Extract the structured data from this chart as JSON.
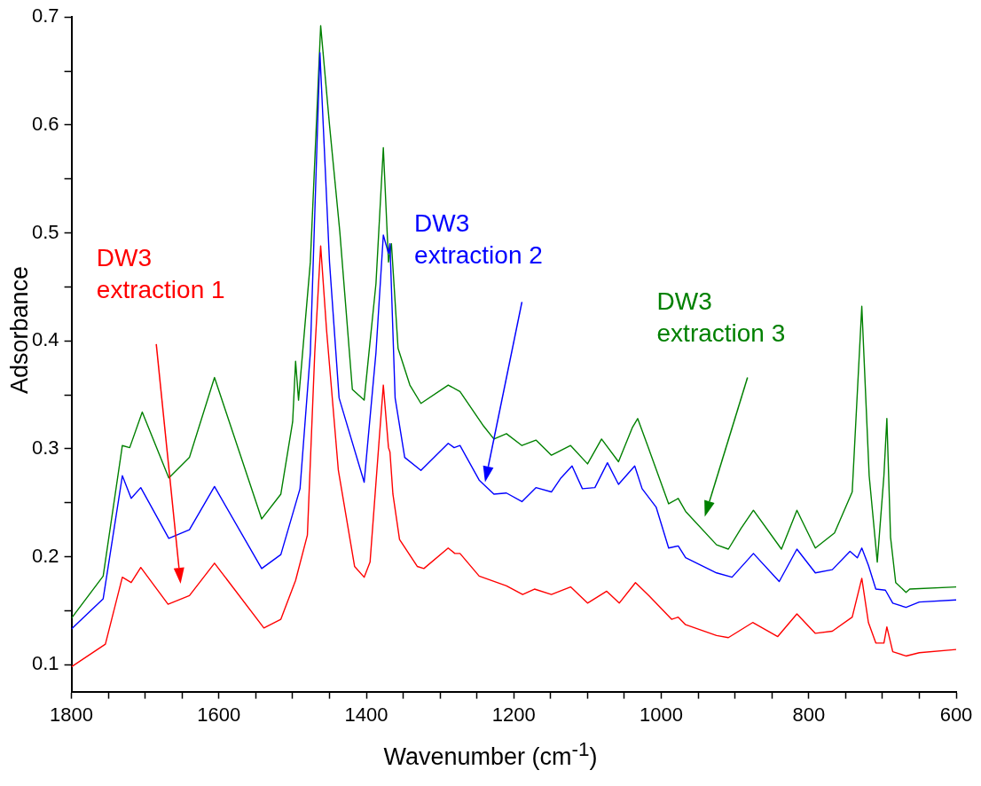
{
  "chart_data": {
    "type": "line",
    "xlabel": "Wavenumber (cm$^{-1}$)",
    "ylabel": "Adsorbance",
    "xlim": [
      1800,
      600
    ],
    "ylim": [
      0.075,
      0.7
    ],
    "xticks": [
      1800,
      {
        "value": 1750,
        "label": null
      },
      1600,
      {
        "value": 1550,
        "label": null
      },
      1400,
      {
        "value": 1350,
        "label": null
      },
      1200,
      {
        "value": 1150,
        "label": null
      },
      1000,
      {
        "value": 950,
        "label": null
      },
      800,
      {
        "value": 750,
        "label": null
      },
      600,
      {
        "value": 1700,
        "label": null
      },
      {
        "value": 1650,
        "label": null
      },
      {
        "value": 1500,
        "label": null
      },
      {
        "value": 1450,
        "label": null
      },
      {
        "value": 1300,
        "label": null
      },
      {
        "value": 1250,
        "label": null
      },
      {
        "value": 1100,
        "label": null
      },
      {
        "value": 1050,
        "label": null
      },
      {
        "value": 900,
        "label": null
      },
      {
        "value": 850,
        "label": null
      },
      {
        "value": 700,
        "label": null
      },
      {
        "value": 650,
        "label": null
      }
    ],
    "yticks": [
      0.1,
      {
        "value": 0.15,
        "label": null
      },
      0.2,
      {
        "value": 0.25,
        "label": null
      },
      0.3,
      {
        "value": 0.35,
        "label": null
      },
      0.4,
      {
        "value": 0.45,
        "label": null
      },
      0.5,
      {
        "value": 0.55,
        "label": null
      },
      0.6,
      {
        "value": 0.65,
        "label": null
      },
      0.7
    ],
    "grid": false,
    "legend": false,
    "marker": "none",
    "line_style": "solid",
    "series": [
      {
        "name": "DW3\nextraction 1",
        "color": "#ff0000",
        "x": [
          1800,
          1754,
          1731,
          1719,
          1706,
          1669,
          1640,
          1606,
          1539,
          1516,
          1496,
          1480,
          1470,
          1462,
          1454,
          1438,
          1416,
          1403,
          1395,
          1383,
          1377,
          1370,
          1368,
          1364,
          1355,
          1331,
          1322,
          1289,
          1280,
          1273,
          1247,
          1210,
          1188,
          1172,
          1149,
          1123,
          1100,
          1074,
          1057,
          1035,
          1017,
          986,
          977,
          967,
          925,
          909,
          876,
          842,
          816,
          791,
          768,
          741,
          728,
          719,
          709,
          698,
          694,
          686,
          668,
          650,
          600
        ],
        "values": [
          0.098,
          0.119,
          0.181,
          0.176,
          0.19,
          0.156,
          0.164,
          0.194,
          0.134,
          0.142,
          0.178,
          0.22,
          0.389,
          0.488,
          0.41,
          0.28,
          0.191,
          0.181,
          0.195,
          0.305,
          0.359,
          0.301,
          0.297,
          0.258,
          0.216,
          0.191,
          0.189,
          0.208,
          0.203,
          0.203,
          0.182,
          0.173,
          0.165,
          0.17,
          0.165,
          0.172,
          0.157,
          0.168,
          0.157,
          0.176,
          0.164,
          0.142,
          0.144,
          0.137,
          0.127,
          0.125,
          0.139,
          0.126,
          0.147,
          0.129,
          0.131,
          0.144,
          0.18,
          0.139,
          0.12,
          0.12,
          0.135,
          0.112,
          0.108,
          0.111,
          0.114
        ]
      },
      {
        "name": "DW3\nextraction 2",
        "color": "#0000ff",
        "x": [
          1800,
          1757,
          1731,
          1719,
          1706,
          1668,
          1640,
          1606,
          1542,
          1516,
          1490,
          1476,
          1463,
          1450,
          1437,
          1403,
          1387,
          1377,
          1370,
          1368,
          1361,
          1348,
          1326,
          1289,
          1281,
          1273,
          1247,
          1227,
          1210,
          1189,
          1170,
          1149,
          1136,
          1121,
          1107,
          1090,
          1073,
          1058,
          1036,
          1026,
          1007,
          990,
          977,
          967,
          925,
          904,
          875,
          840,
          816,
          791,
          768,
          744,
          734,
          728,
          719,
          709,
          696,
          686,
          668,
          650,
          600
        ],
        "values": [
          0.133,
          0.161,
          0.275,
          0.254,
          0.264,
          0.217,
          0.225,
          0.265,
          0.189,
          0.202,
          0.263,
          0.389,
          0.667,
          0.473,
          0.347,
          0.269,
          0.389,
          0.498,
          0.481,
          0.49,
          0.347,
          0.292,
          0.28,
          0.305,
          0.301,
          0.303,
          0.271,
          0.258,
          0.259,
          0.251,
          0.264,
          0.26,
          0.273,
          0.284,
          0.263,
          0.264,
          0.287,
          0.267,
          0.284,
          0.263,
          0.246,
          0.208,
          0.21,
          0.199,
          0.185,
          0.181,
          0.203,
          0.177,
          0.207,
          0.185,
          0.188,
          0.205,
          0.199,
          0.208,
          0.192,
          0.17,
          0.169,
          0.157,
          0.153,
          0.158,
          0.16
        ]
      },
      {
        "name": "DW3\nextraction 3",
        "color": "#008000",
        "x": [
          1800,
          1757,
          1731,
          1721,
          1704,
          1668,
          1640,
          1606,
          1542,
          1516,
          1500,
          1496,
          1492,
          1476,
          1462,
          1450,
          1436,
          1419,
          1403,
          1387,
          1377,
          1370,
          1366,
          1357,
          1341,
          1326,
          1289,
          1273,
          1241,
          1227,
          1210,
          1189,
          1170,
          1149,
          1123,
          1100,
          1081,
          1058,
          1039,
          1032,
          1017,
          990,
          977,
          967,
          925,
          909,
          892,
          875,
          837,
          816,
          791,
          765,
          741,
          728,
          718,
          707,
          698,
          694,
          689,
          682,
          668,
          663,
          600
        ],
        "values": [
          0.143,
          0.182,
          0.303,
          0.301,
          0.334,
          0.273,
          0.292,
          0.366,
          0.235,
          0.258,
          0.325,
          0.381,
          0.345,
          0.473,
          0.692,
          0.6,
          0.501,
          0.355,
          0.345,
          0.453,
          0.579,
          0.473,
          0.49,
          0.393,
          0.359,
          0.342,
          0.359,
          0.353,
          0.321,
          0.309,
          0.314,
          0.303,
          0.308,
          0.294,
          0.303,
          0.286,
          0.309,
          0.288,
          0.32,
          0.328,
          0.3,
          0.249,
          0.254,
          0.242,
          0.211,
          0.207,
          0.226,
          0.243,
          0.207,
          0.243,
          0.208,
          0.222,
          0.26,
          0.432,
          0.275,
          0.195,
          0.275,
          0.328,
          0.218,
          0.176,
          0.167,
          0.17,
          0.172
        ]
      }
    ]
  }
}
